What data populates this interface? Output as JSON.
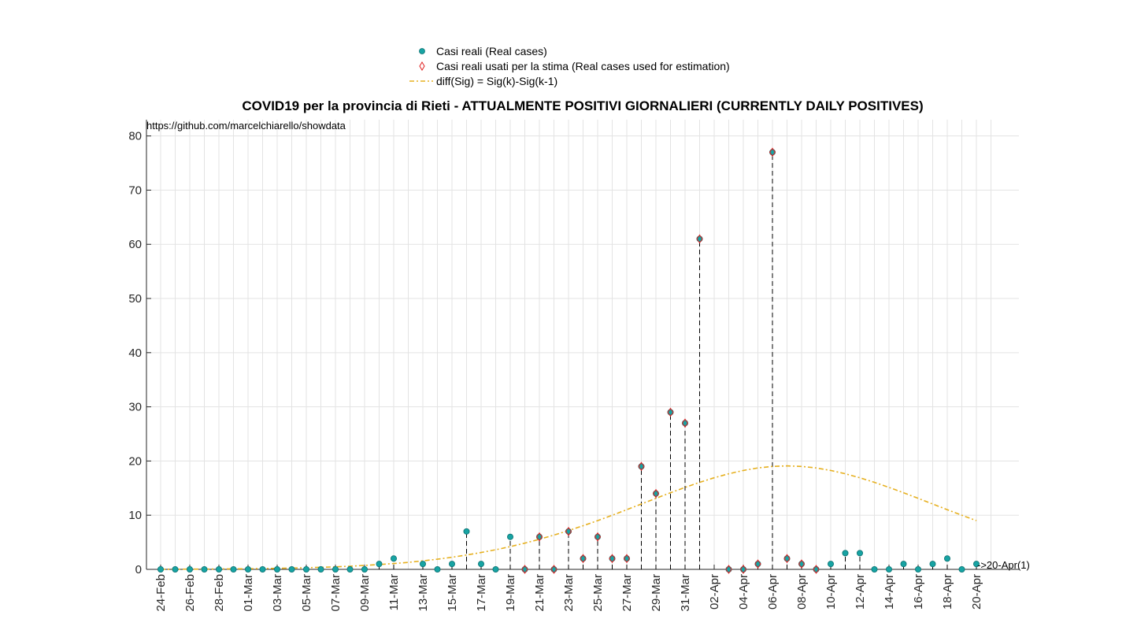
{
  "chart_data": {
    "type": "scatter",
    "title": "COVID19 per la provincia di Rieti - ATTUALMENTE POSITIVI GIORNALIERI (CURRENTLY DAILY POSITIVES)",
    "source_text": "https://github.com/marcelchiarello/showdata",
    "xlabel": "",
    "ylabel": "",
    "ylim": [
      0,
      83
    ],
    "yticks": [
      0,
      10,
      20,
      30,
      40,
      50,
      60,
      70,
      80
    ],
    "grid": true,
    "legend_position": "top-center",
    "end_annotation": "->20-Apr(1)",
    "dates": [
      "24-Feb",
      "25-Feb",
      "26-Feb",
      "27-Feb",
      "28-Feb",
      "29-Feb",
      "01-Mar",
      "02-Mar",
      "03-Mar",
      "04-Mar",
      "05-Mar",
      "06-Mar",
      "07-Mar",
      "08-Mar",
      "09-Mar",
      "10-Mar",
      "11-Mar",
      "12-Mar",
      "13-Mar",
      "14-Mar",
      "15-Mar",
      "16-Mar",
      "17-Mar",
      "18-Mar",
      "19-Mar",
      "20-Mar",
      "21-Mar",
      "22-Mar",
      "23-Mar",
      "24-Mar",
      "25-Mar",
      "26-Mar",
      "27-Mar",
      "28-Mar",
      "29-Mar",
      "30-Mar",
      "31-Mar",
      "01-Apr",
      "02-Apr",
      "03-Apr",
      "04-Apr",
      "05-Apr",
      "06-Apr",
      "07-Apr",
      "08-Apr",
      "09-Apr",
      "10-Apr",
      "11-Apr",
      "12-Apr",
      "13-Apr",
      "14-Apr",
      "15-Apr",
      "16-Apr",
      "17-Apr",
      "18-Apr",
      "19-Apr",
      "20-Apr",
      "21-Apr"
    ],
    "tick_labels": [
      "24-Feb",
      "26-Feb",
      "28-Feb",
      "01-Mar",
      "03-Mar",
      "05-Mar",
      "07-Mar",
      "09-Mar",
      "11-Mar",
      "13-Mar",
      "15-Mar",
      "17-Mar",
      "19-Mar",
      "21-Mar",
      "23-Mar",
      "25-Mar",
      "27-Mar",
      "29-Mar",
      "31-Mar",
      "02-Apr",
      "04-Apr",
      "06-Apr",
      "08-Apr",
      "10-Apr",
      "12-Apr",
      "14-Apr",
      "16-Apr",
      "18-Apr",
      "20-Apr"
    ],
    "series": [
      {
        "name": "Casi reali (Real cases)",
        "color": "#17a3a3",
        "values": [
          0,
          0,
          0,
          0,
          0,
          0,
          0,
          0,
          0,
          0,
          0,
          0,
          0,
          0,
          0,
          1,
          2,
          null,
          1,
          0,
          1,
          7,
          1,
          0,
          6,
          0,
          6,
          0,
          7,
          2,
          6,
          2,
          2,
          19,
          14,
          29,
          27,
          61,
          null,
          0,
          0,
          1,
          77,
          2,
          1,
          0,
          1,
          3,
          3,
          0,
          0,
          1,
          0,
          1,
          2,
          0,
          1,
          null
        ]
      },
      {
        "name": "Casi reali usati per la stima (Real cases used for estimation)",
        "color": "#e02020",
        "values": [
          null,
          null,
          null,
          null,
          null,
          null,
          null,
          null,
          null,
          null,
          null,
          null,
          null,
          null,
          null,
          null,
          null,
          null,
          null,
          null,
          null,
          null,
          null,
          null,
          null,
          0,
          6,
          0,
          7,
          2,
          6,
          2,
          2,
          19,
          14,
          29,
          27,
          61,
          null,
          0,
          0,
          1,
          77,
          2,
          1,
          0,
          null,
          null,
          null,
          null,
          null,
          null,
          null,
          null,
          null,
          null,
          null,
          null
        ]
      },
      {
        "name": "diff(Sig) = Sig(k)-Sig(k-1)",
        "color": "#e6b020",
        "values": [
          0.02,
          0.03,
          0.04,
          0.05,
          0.07,
          0.09,
          0.12,
          0.15,
          0.19,
          0.24,
          0.3,
          0.38,
          0.47,
          0.58,
          0.72,
          0.88,
          1.07,
          1.3,
          1.57,
          1.88,
          2.24,
          2.65,
          3.11,
          3.62,
          4.2,
          4.84,
          5.55,
          6.32,
          7.16,
          8.05,
          9.0,
          9.99,
          11.02,
          12.06,
          13.11,
          14.14,
          15.13,
          16.06,
          16.91,
          17.65,
          18.26,
          18.72,
          19.0,
          19.1,
          19.0,
          18.72,
          18.26,
          17.65,
          16.91,
          16.06,
          15.13,
          14.14,
          13.11,
          12.06,
          11.02,
          9.99,
          9.0,
          null
        ]
      }
    ]
  }
}
